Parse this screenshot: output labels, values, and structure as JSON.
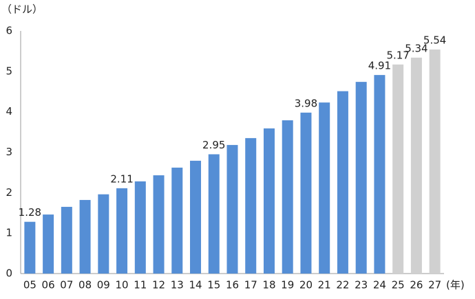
{
  "chart_data": {
    "type": "bar",
    "y_unit": "（ドル）",
    "x_unit": "(年)",
    "categories": [
      "05",
      "06",
      "07",
      "08",
      "09",
      "10",
      "11",
      "12",
      "13",
      "14",
      "15",
      "16",
      "17",
      "18",
      "19",
      "20",
      "21",
      "22",
      "23",
      "24",
      "25",
      "26",
      "27"
    ],
    "values": [
      1.28,
      1.46,
      1.65,
      1.82,
      1.96,
      2.11,
      2.28,
      2.43,
      2.62,
      2.79,
      2.95,
      3.18,
      3.35,
      3.59,
      3.79,
      3.98,
      4.23,
      4.51,
      4.74,
      4.91,
      5.17,
      5.34,
      5.54
    ],
    "value_labels": [
      "1.28",
      null,
      null,
      null,
      null,
      "2.11",
      null,
      null,
      null,
      null,
      "2.95",
      null,
      null,
      null,
      null,
      "3.98",
      null,
      null,
      null,
      "4.91",
      "5.17",
      "5.34",
      "5.54"
    ],
    "colors": [
      "#558ed5",
      "#558ed5",
      "#558ed5",
      "#558ed5",
      "#558ed5",
      "#558ed5",
      "#558ed5",
      "#558ed5",
      "#558ed5",
      "#558ed5",
      "#558ed5",
      "#558ed5",
      "#558ed5",
      "#558ed5",
      "#558ed5",
      "#558ed5",
      "#558ed5",
      "#558ed5",
      "#558ed5",
      "#558ed5",
      "#d0d0d0",
      "#d0d0d0",
      "#d0d0d0"
    ],
    "ylim": [
      0,
      6
    ],
    "yticks": [
      0,
      1,
      2,
      3,
      4,
      5,
      6
    ],
    "grid": false
  }
}
